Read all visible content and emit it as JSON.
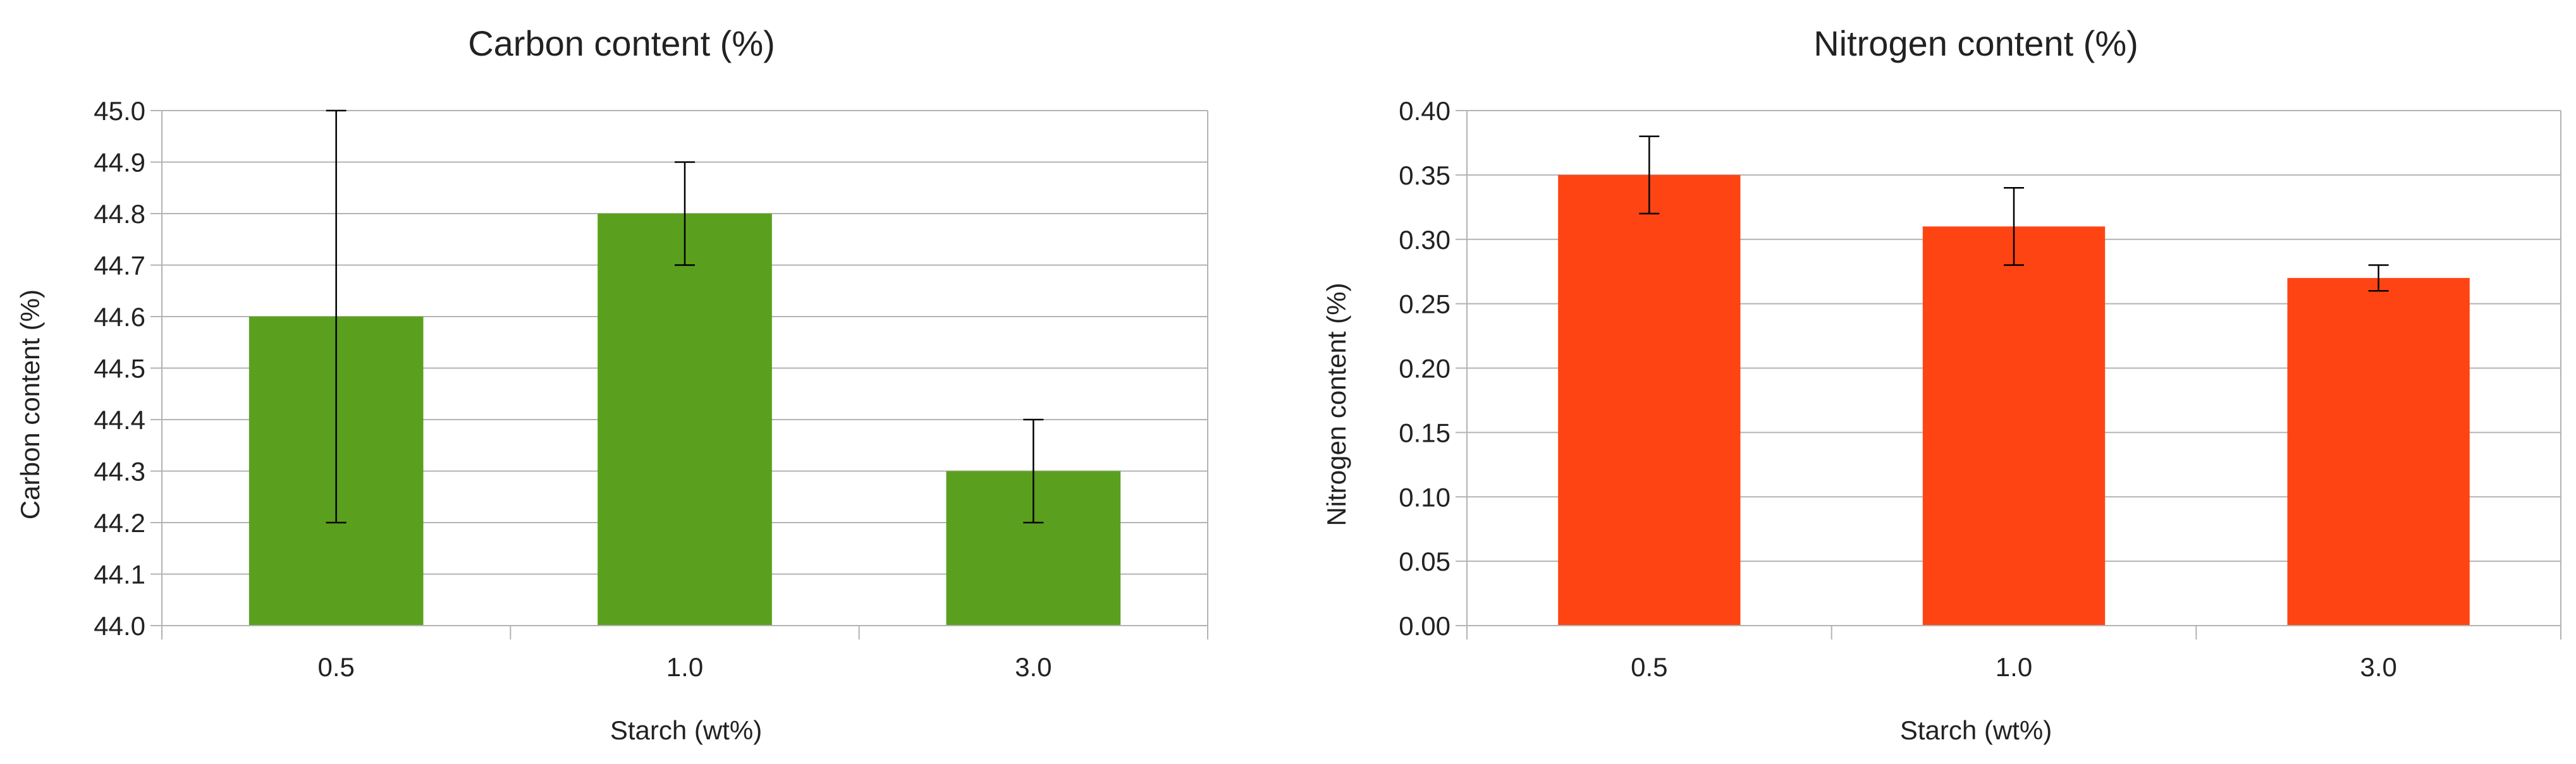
{
  "chart_data": [
    {
      "type": "bar",
      "title": "Carbon content (%)",
      "xlabel": "Starch (wt%)",
      "ylabel": "Carbon content (%)",
      "categories": [
        "0.5",
        "1.0",
        "3.0"
      ],
      "values": [
        44.6,
        44.8,
        44.3
      ],
      "error_low": [
        44.2,
        44.7,
        44.2
      ],
      "error_high": [
        45.0,
        44.9,
        44.4
      ],
      "ylim": [
        44.0,
        45.0
      ],
      "yticks": [
        44.0,
        44.1,
        44.2,
        44.3,
        44.4,
        44.5,
        44.6,
        44.7,
        44.8,
        44.9,
        45.0
      ],
      "tick_decimals": 1,
      "grid": true,
      "color": "#5aa01e"
    },
    {
      "type": "bar",
      "title": "Nitrogen content (%)",
      "xlabel": "Starch (wt%)",
      "ylabel": "Nitrogen content (%)",
      "categories": [
        "0.5",
        "1.0",
        "3.0"
      ],
      "values": [
        0.35,
        0.31,
        0.27
      ],
      "error_low": [
        0.32,
        0.28,
        0.26
      ],
      "error_high": [
        0.38,
        0.34,
        0.28
      ],
      "ylim": [
        0.0,
        0.4
      ],
      "yticks": [
        0.0,
        0.05,
        0.1,
        0.15,
        0.2,
        0.25,
        0.3,
        0.35,
        0.4
      ],
      "tick_decimals": 2,
      "grid": true,
      "color": "#ff4413"
    }
  ]
}
